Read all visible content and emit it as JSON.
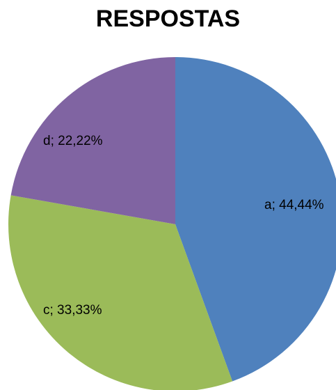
{
  "chart_data": {
    "type": "pie",
    "title": "RESPOSTAS",
    "categories": [
      "a",
      "c",
      "d"
    ],
    "values": [
      44.44,
      33.33,
      22.22
    ],
    "labels": [
      "a; 44,44%",
      "c; 33,33%",
      "d; 22,22%"
    ],
    "colors": [
      "#4F81BD",
      "#9BBB59",
      "#8064A2"
    ],
    "start_angle_deg": 0,
    "direction": "clockwise",
    "legend": "none"
  }
}
